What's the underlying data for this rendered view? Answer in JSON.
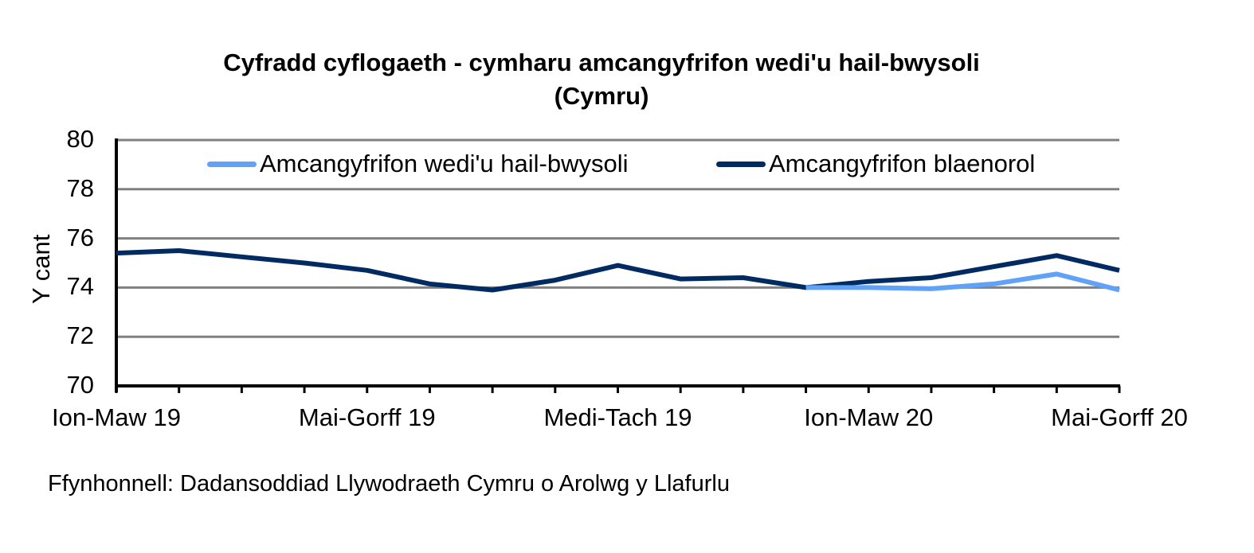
{
  "chart_data": {
    "type": "line",
    "title": "Cyfradd cyflogaeth - cymharu amcangyfrifon wedi'u hail-bwysoli",
    "subtitle": "(Cymru)",
    "xlabel": "",
    "ylabel": "Y cant",
    "ylim": [
      70,
      80
    ],
    "yticks": [
      "80",
      "78",
      "76",
      "74",
      "72",
      "70"
    ],
    "categories": [
      "Ion-Maw 19",
      "",
      "",
      "",
      "Mai-Gorff 19",
      "",
      "",
      "",
      "Medi-Tach 19",
      "",
      "",
      "",
      "Ion-Maw 20",
      "",
      "",
      "",
      "Mai-Gorff 20"
    ],
    "grid": true,
    "legend_position": "top-inside",
    "series": [
      {
        "name": "Amcangyfrifon wedi'u hail-bwysoli",
        "color": "#5FA2F7",
        "values": [
          null,
          null,
          null,
          null,
          null,
          null,
          null,
          null,
          null,
          null,
          null,
          74.0,
          74.0,
          73.95,
          74.15,
          74.55,
          73.9
        ]
      },
      {
        "name": "Amcangyfrifon blaenorol",
        "color": "#002B62",
        "values": [
          75.4,
          75.5,
          75.25,
          75.0,
          74.7,
          74.15,
          73.9,
          74.3,
          74.9,
          74.35,
          74.4,
          74.0,
          74.25,
          74.4,
          74.85,
          75.3,
          74.7
        ]
      }
    ],
    "source": "Ffynhonnell: Dadansoddiad Llywodraeth Cymru o Arolwg y Llafurlu"
  },
  "colors": {
    "gridline": "#808080",
    "axis": "#000000"
  }
}
